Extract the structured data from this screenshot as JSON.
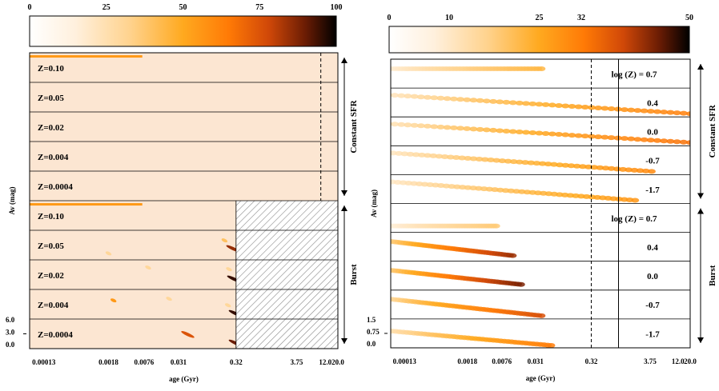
{
  "chart_data": [
    {
      "type": "heatmap",
      "colorbar": {
        "min": 0,
        "max": 100,
        "ticks": [
          "0",
          "25",
          "50",
          "75",
          "100"
        ],
        "tick_values": [
          0,
          25,
          50,
          75,
          100
        ]
      },
      "background_color": "#fce6d2",
      "xlabel": "age (Gyr)",
      "ylabel": "Av (mag)",
      "x_ticks": [
        "0.00013",
        "0.0018",
        "0.0076",
        "0.031",
        "0.32",
        "3.75",
        "12.0",
        "20.0"
      ],
      "y_ticks": [
        "6.0",
        "3.0",
        "0.0"
      ],
      "dashed_line_age_gyr": 10.0,
      "groups": [
        {
          "name": "Constant SFR",
          "panels": [
            {
              "label": "Z=0.10",
              "bands": [
                {
                  "from_age": 6e-05,
                  "to_age": 0.0071,
                  "av": 6.0,
                  "intensity": 55
                }
              ]
            },
            {
              "label": "Z=0.05",
              "bands": []
            },
            {
              "label": "Z=0.02",
              "bands": []
            },
            {
              "label": "Z=0.004",
              "bands": []
            },
            {
              "label": "Z=0.0004",
              "bands": []
            }
          ]
        },
        {
          "name": "Burst",
          "hatched_from_age_gyr": 0.32,
          "panels": [
            {
              "label": "Z=0.10",
              "bands": [
                {
                  "from_age": 6e-05,
                  "to_age": 0.0071,
                  "av": 6.0,
                  "intensity": 55
                }
              ]
            },
            {
              "label": "Z=0.05",
              "blobs": [
                {
                  "age": 0.0018,
                  "av": 1.2,
                  "intensity": 30
                },
                {
                  "age": 0.2,
                  "av": 4.4,
                  "intensity": 40
                },
                {
                  "age": 0.28,
                  "av": 2.4,
                  "intensity": 85
                }
              ]
            },
            {
              "label": "Z=0.02",
              "blobs": [
                {
                  "age": 0.009,
                  "av": 5.0,
                  "intensity": 30
                },
                {
                  "age": 0.24,
                  "av": 4.6,
                  "intensity": 30
                },
                {
                  "age": 0.29,
                  "av": 2.2,
                  "intensity": 95
                }
              ]
            },
            {
              "label": "Z=0.004",
              "blobs": [
                {
                  "age": 0.0022,
                  "av": 4.2,
                  "intensity": 55
                },
                {
                  "age": 0.021,
                  "av": 4.6,
                  "intensity": 30
                },
                {
                  "age": 0.23,
                  "av": 3.0,
                  "intensity": 30
                },
                {
                  "age": 0.31,
                  "av": 1.0,
                  "intensity": 95
                }
              ]
            },
            {
              "label": "Z=0.0004",
              "blobs": [
                {
                  "age": 0.045,
                  "av": 3.1,
                  "intensity": 75
                },
                {
                  "age": 0.31,
                  "av": 1.0,
                  "intensity": 90
                }
              ]
            }
          ]
        }
      ]
    },
    {
      "type": "heatmap",
      "colorbar": {
        "min": 0,
        "max": 50,
        "ticks": [
          "0",
          "10",
          "25",
          "32",
          "50"
        ],
        "tick_values": [
          0,
          10,
          25,
          32,
          50
        ]
      },
      "background_color": "#ffffff",
      "xlabel": "age (Gyr)",
      "ylabel": "Av (mag)",
      "x_ticks": [
        "0.00013",
        "0.0018",
        "0.0076",
        "0.031",
        "0.32",
        "3.75",
        "12.0",
        "20.0"
      ],
      "y_ticks": [
        "1.5",
        "0.75",
        "0.0"
      ],
      "dashed_line_age_gyr": 0.32,
      "solid_line_age_gyr": 1.0,
      "groups": [
        {
          "name": "Constant SFR",
          "panels": [
            {
              "label": "log (Z) = 0.7",
              "tracks": [
                {
                  "from_age": 5e-05,
                  "to_age": 0.04,
                  "from_av": 1.1,
                  "to_av": 1.1,
                  "intensity": 22
                }
              ]
            },
            {
              "label": "0.4",
              "tracks": [
                {
                  "from_age": 5e-05,
                  "to_age": 20.0,
                  "from_av": 1.3,
                  "to_av": 0.1,
                  "intensity": 32
                }
              ]
            },
            {
              "label": "0.0",
              "tracks": [
                {
                  "from_age": 5e-05,
                  "to_age": 20.0,
                  "from_av": 1.3,
                  "to_av": 0.1,
                  "intensity": 34
                }
              ]
            },
            {
              "label": "-0.7",
              "tracks": [
                {
                  "from_age": 5e-05,
                  "to_age": 4.0,
                  "from_av": 1.3,
                  "to_av": 0.1,
                  "intensity": 30
                }
              ]
            },
            {
              "label": "-1.7",
              "tracks": [
                {
                  "from_age": 5e-05,
                  "to_age": 2.0,
                  "from_av": 1.3,
                  "to_av": 0.1,
                  "intensity": 28
                }
              ]
            }
          ]
        },
        {
          "name": "Burst",
          "panels": [
            {
              "label": "log (Z) = 0.7",
              "tracks": [
                {
                  "from_age": 5e-05,
                  "to_age": 0.006,
                  "from_av": 0.3,
                  "to_av": 0.3,
                  "intensity": 18
                }
              ]
            },
            {
              "label": "0.4",
              "tracks": [
                {
                  "from_age": 5e-05,
                  "to_age": 0.012,
                  "from_av": 1.2,
                  "to_av": 0.25,
                  "intensity": 42
                }
              ]
            },
            {
              "label": "0.0",
              "tracks": [
                {
                  "from_age": 5e-05,
                  "to_age": 0.017,
                  "from_av": 1.2,
                  "to_av": 0.25,
                  "intensity": 44
                }
              ]
            },
            {
              "label": "-0.7",
              "tracks": [
                {
                  "from_age": 5e-05,
                  "to_age": 0.04,
                  "from_av": 1.2,
                  "to_av": 0.1,
                  "intensity": 38
                }
              ]
            },
            {
              "label": "-1.7",
              "tracks": [
                {
                  "from_age": 5e-05,
                  "to_age": 0.06,
                  "from_av": 1.0,
                  "to_av": 0.05,
                  "intensity": 32
                }
              ]
            }
          ]
        }
      ]
    }
  ]
}
